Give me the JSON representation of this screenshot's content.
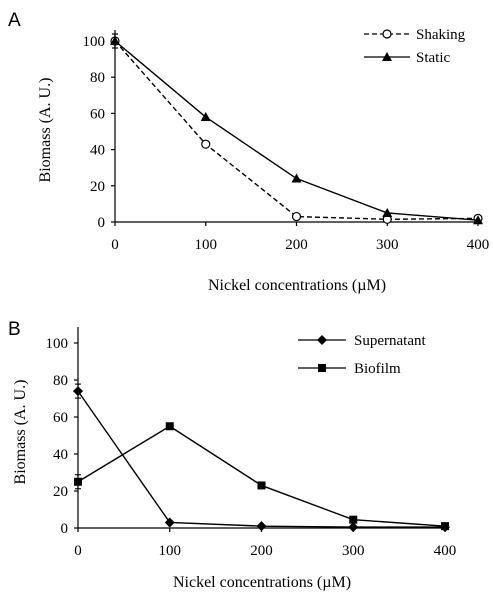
{
  "chart_data": [
    {
      "panel": "A",
      "type": "line",
      "xlabel": "Nickel concentrations (µM)",
      "ylabel": "Biomass (A. U.)",
      "x": [
        0,
        100,
        200,
        300,
        400
      ],
      "xlim": [
        0,
        400
      ],
      "ylim": [
        0,
        100
      ],
      "xticks": [
        "0",
        "100",
        "200",
        "300",
        "400"
      ],
      "yticks": [
        "0",
        "20",
        "40",
        "60",
        "80",
        "100"
      ],
      "legend_position": "top-right",
      "grid": false,
      "series": [
        {
          "name": "Shaking",
          "values": [
            100,
            43,
            3,
            1.5,
            2
          ],
          "marker": "open-circle",
          "dash": true
        },
        {
          "name": "Static",
          "values": [
            100,
            58,
            24,
            5,
            1
          ],
          "marker": "triangle",
          "dash": false
        }
      ]
    },
    {
      "panel": "B",
      "type": "line",
      "xlabel": "Nickel concentrations (µM)",
      "ylabel": "Biomass (A. U.)",
      "x": [
        0,
        100,
        200,
        300,
        400
      ],
      "xlim": [
        0,
        400
      ],
      "ylim": [
        0,
        100
      ],
      "xticks": [
        "0",
        "100",
        "200",
        "300",
        "400"
      ],
      "yticks": [
        "0",
        "20",
        "40",
        "60",
        "80",
        "100"
      ],
      "legend_position": "top-right",
      "grid": false,
      "series": [
        {
          "name": "Supernatant",
          "values": [
            74,
            3,
            1,
            0.5,
            0.5
          ],
          "marker": "diamond",
          "dash": false
        },
        {
          "name": "Biofilm",
          "values": [
            25,
            55,
            23,
            4.5,
            1
          ],
          "marker": "square",
          "dash": false
        }
      ]
    }
  ]
}
